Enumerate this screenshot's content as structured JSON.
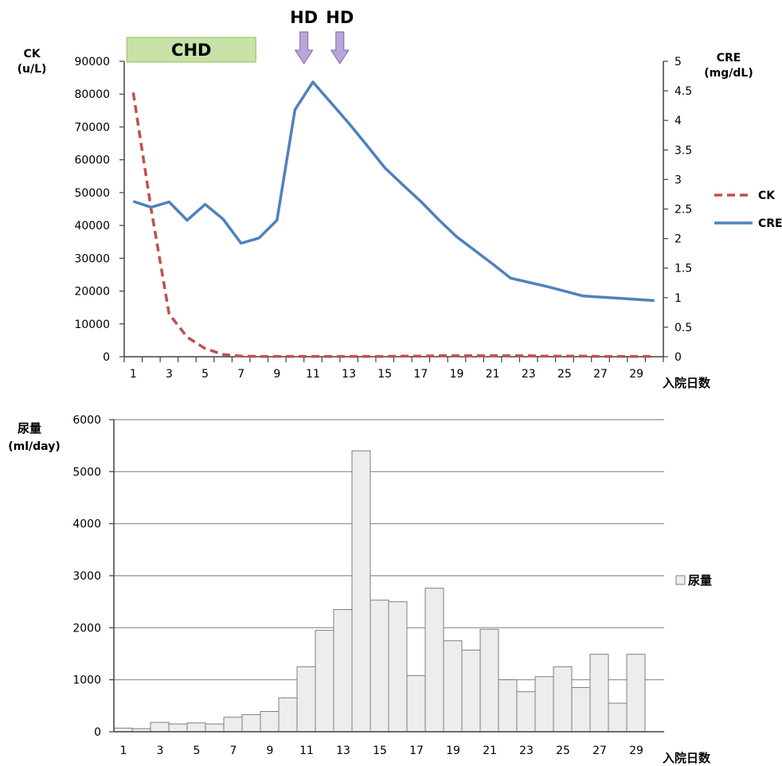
{
  "chart_data": [
    {
      "type": "line",
      "x": [
        1,
        2,
        3,
        4,
        5,
        6,
        7,
        8,
        9,
        10,
        11,
        12,
        13,
        14,
        15,
        16,
        17,
        18,
        19,
        20,
        21,
        22,
        23,
        24,
        25,
        26,
        27,
        28,
        29,
        30
      ],
      "x_ticks": [
        "1",
        "3",
        "5",
        "7",
        "9",
        "11",
        "13",
        "15",
        "17",
        "19",
        "21",
        "23",
        "25",
        "27",
        "29"
      ],
      "xlabel": "入院日数",
      "y_left_label_lines": [
        "CK",
        "(u/L)"
      ],
      "y_right_label_lines": [
        "CRE",
        "(mg/dL)"
      ],
      "y_left_ticks": [
        "0",
        "10000",
        "20000",
        "30000",
        "40000",
        "50000",
        "60000",
        "70000",
        "80000",
        "90000"
      ],
      "y_right_ticks": [
        "0",
        "0.5",
        "1",
        "1.5",
        "2",
        "2.5",
        "3",
        "3.5",
        "4",
        "4.5",
        "5"
      ],
      "ylim_left": [
        0,
        90000
      ],
      "ylim_right": [
        0,
        5
      ],
      "series": [
        {
          "name": "CK",
          "axis": "left",
          "color": "#C0504D",
          "style": "dashed",
          "values": [
            80500,
            45000,
            13000,
            6000,
            2500,
            700,
            200,
            100,
            100,
            100,
            100,
            100,
            100,
            100,
            100,
            200,
            200,
            300,
            300,
            300,
            300,
            300,
            300,
            200,
            200,
            200,
            100,
            100,
            100,
            100
          ]
        },
        {
          "name": "CRE",
          "axis": "right",
          "color": "#4F81BD",
          "style": "solid",
          "values": [
            2.63,
            2.53,
            2.62,
            2.31,
            2.58,
            2.33,
            1.92,
            2.01,
            2.31,
            4.18,
            4.65,
            4.3,
            3.95,
            3.58,
            3.2,
            2.91,
            2.63,
            2.32,
            2.03,
            1.8,
            1.57,
            1.33,
            1.26,
            1.19,
            1.11,
            1.03,
            1.01,
            0.99,
            0.97,
            0.95
          ]
        }
      ],
      "legend": "right",
      "grid": false,
      "annotations": {
        "chd_label": "CHD",
        "chd_range": [
          1,
          8
        ],
        "chd_color": "#C6E2A8",
        "hd_label": "HD",
        "hd_days": [
          10.5,
          12.5
        ],
        "hd_arrow_color": "#B8A6D9"
      }
    },
    {
      "type": "bar",
      "categories": [
        1,
        2,
        3,
        4,
        5,
        6,
        7,
        8,
        9,
        10,
        11,
        12,
        13,
        14,
        15,
        16,
        17,
        18,
        19,
        20,
        21,
        22,
        23,
        24,
        25,
        26,
        27,
        28,
        29
      ],
      "x_ticks": [
        "1",
        "3",
        "5",
        "7",
        "9",
        "11",
        "13",
        "15",
        "17",
        "19",
        "21",
        "23",
        "25",
        "27",
        "29"
      ],
      "xlabel": "入院日数",
      "ylabel_lines": [
        "尿量",
        "(ml/day)"
      ],
      "y_ticks": [
        "0",
        "1000",
        "2000",
        "3000",
        "4000",
        "5000",
        "6000"
      ],
      "ylim": [
        0,
        6000
      ],
      "series": [
        {
          "name": "尿量",
          "color": "#EDEDED",
          "values": [
            70,
            60,
            180,
            150,
            170,
            150,
            280,
            330,
            390,
            650,
            1250,
            1950,
            2350,
            5400,
            2530,
            2500,
            1080,
            2760,
            1750,
            1570,
            1970,
            1000,
            770,
            1060,
            1250,
            850,
            1490,
            550,
            1490
          ]
        }
      ],
      "legend": "right",
      "grid": true
    }
  ]
}
